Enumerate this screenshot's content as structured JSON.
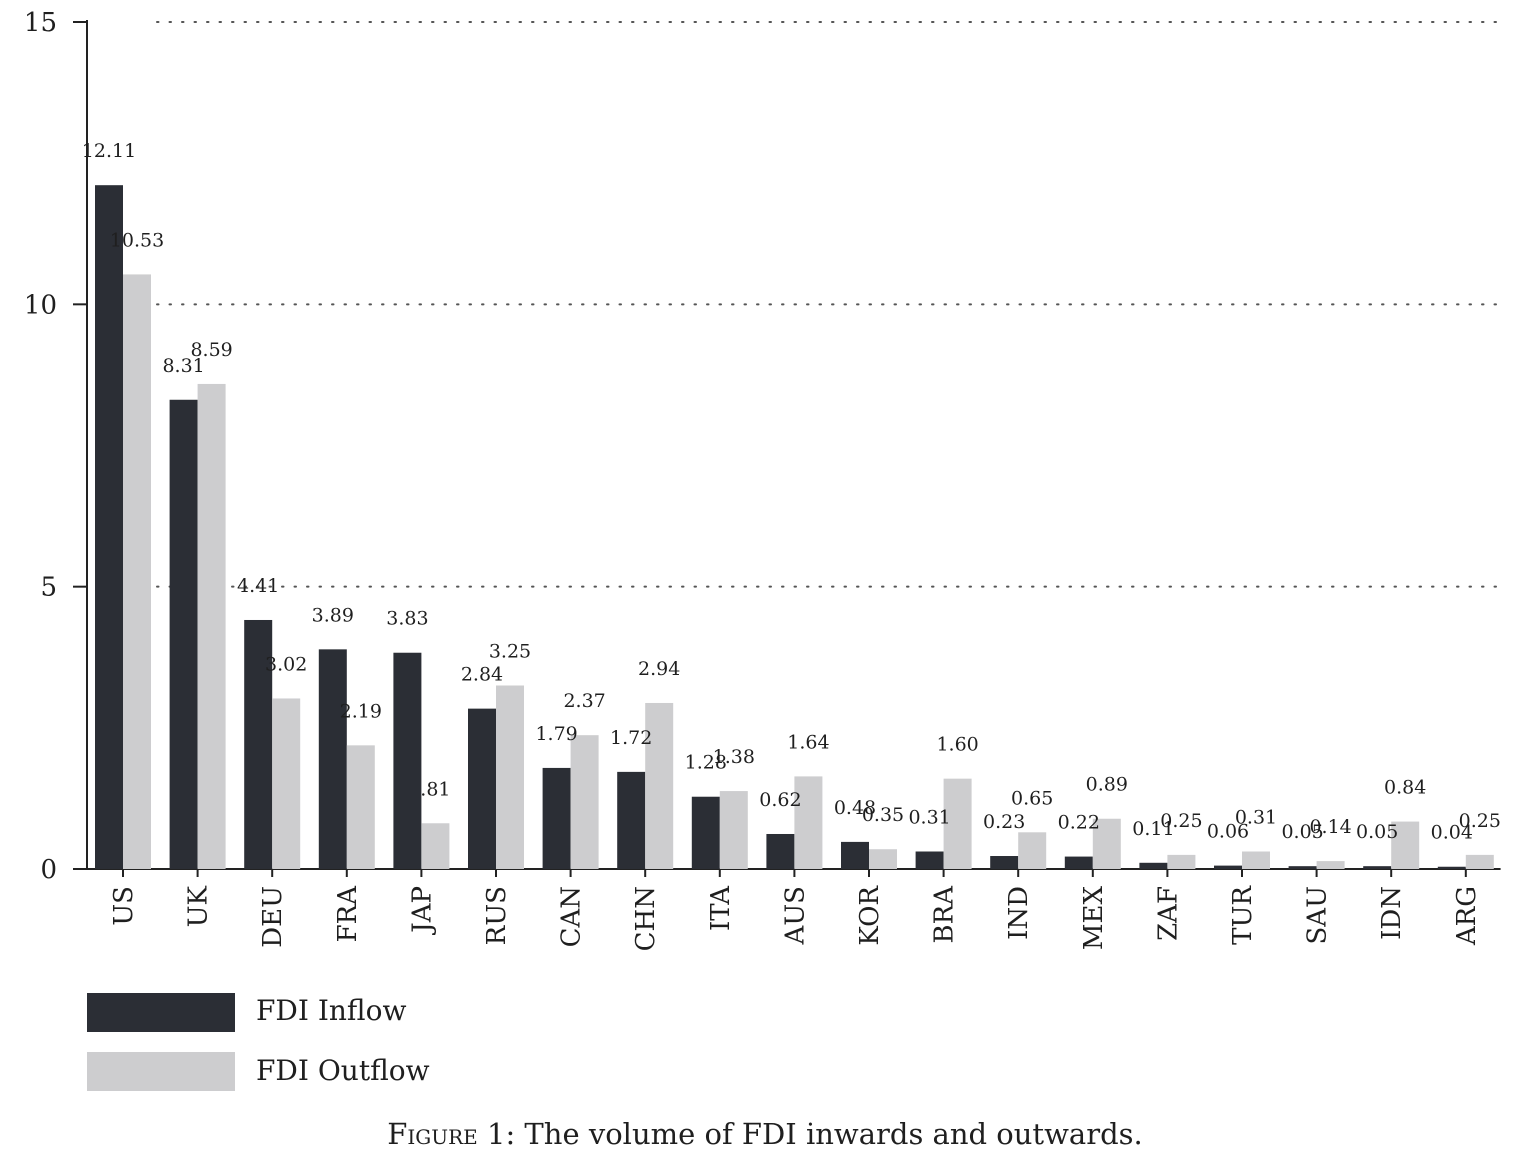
{
  "chart_data": {
    "type": "bar",
    "categories": [
      "US",
      "UK",
      "DEU",
      "FRA",
      "JAP",
      "RUS",
      "CAN",
      "CHN",
      "ITA",
      "AUS",
      "KOR",
      "BRA",
      "IND",
      "MEX",
      "ZAF",
      "TUR",
      "SAU",
      "IDN",
      "ARG"
    ],
    "series": [
      {
        "name": "FDI Inflow",
        "color": "#2b2e35",
        "values": [
          12.11,
          8.31,
          4.41,
          3.89,
          3.83,
          2.84,
          1.79,
          1.72,
          1.28,
          0.62,
          0.48,
          0.31,
          0.23,
          0.22,
          0.11,
          0.06,
          0.05,
          0.05,
          0.04
        ],
        "labels": [
          "12.11",
          "8.31",
          "4.41",
          "3.89",
          "3.83",
          "2.84",
          "1.79",
          "1.72",
          "1.28",
          "0.62",
          "0.48",
          "0.31",
          "0.23",
          "0.22",
          "0.11",
          "0.06",
          "0.05",
          "0.05",
          "0.04"
        ]
      },
      {
        "name": "FDI Outflow",
        "color": "#cdcdcf",
        "values": [
          10.53,
          8.59,
          3.02,
          2.19,
          0.81,
          3.25,
          2.37,
          2.94,
          1.38,
          1.64,
          0.35,
          1.6,
          0.65,
          0.89,
          0.25,
          0.31,
          0.14,
          0.84,
          0.25
        ],
        "labels": [
          "10.53",
          "8.59",
          "3.02",
          "2.19",
          ".81",
          "3.25",
          "2.37",
          "2.94",
          "1.38",
          "1.64",
          "0.35",
          "1.60",
          "0.65",
          "0.89",
          "0.25",
          "0.31",
          "0.14",
          "0.84",
          "0.25"
        ]
      }
    ],
    "ylim": [
      0,
      15
    ],
    "yticks": [
      "0",
      "5",
      "10",
      "15"
    ],
    "grid": "horizontal dotted",
    "legend_position": "bottom-left",
    "xlabel": "",
    "ylabel": ""
  },
  "caption": {
    "figure_label": "Figure 1",
    "text": ": The volume of FDI inwards and outwards."
  }
}
